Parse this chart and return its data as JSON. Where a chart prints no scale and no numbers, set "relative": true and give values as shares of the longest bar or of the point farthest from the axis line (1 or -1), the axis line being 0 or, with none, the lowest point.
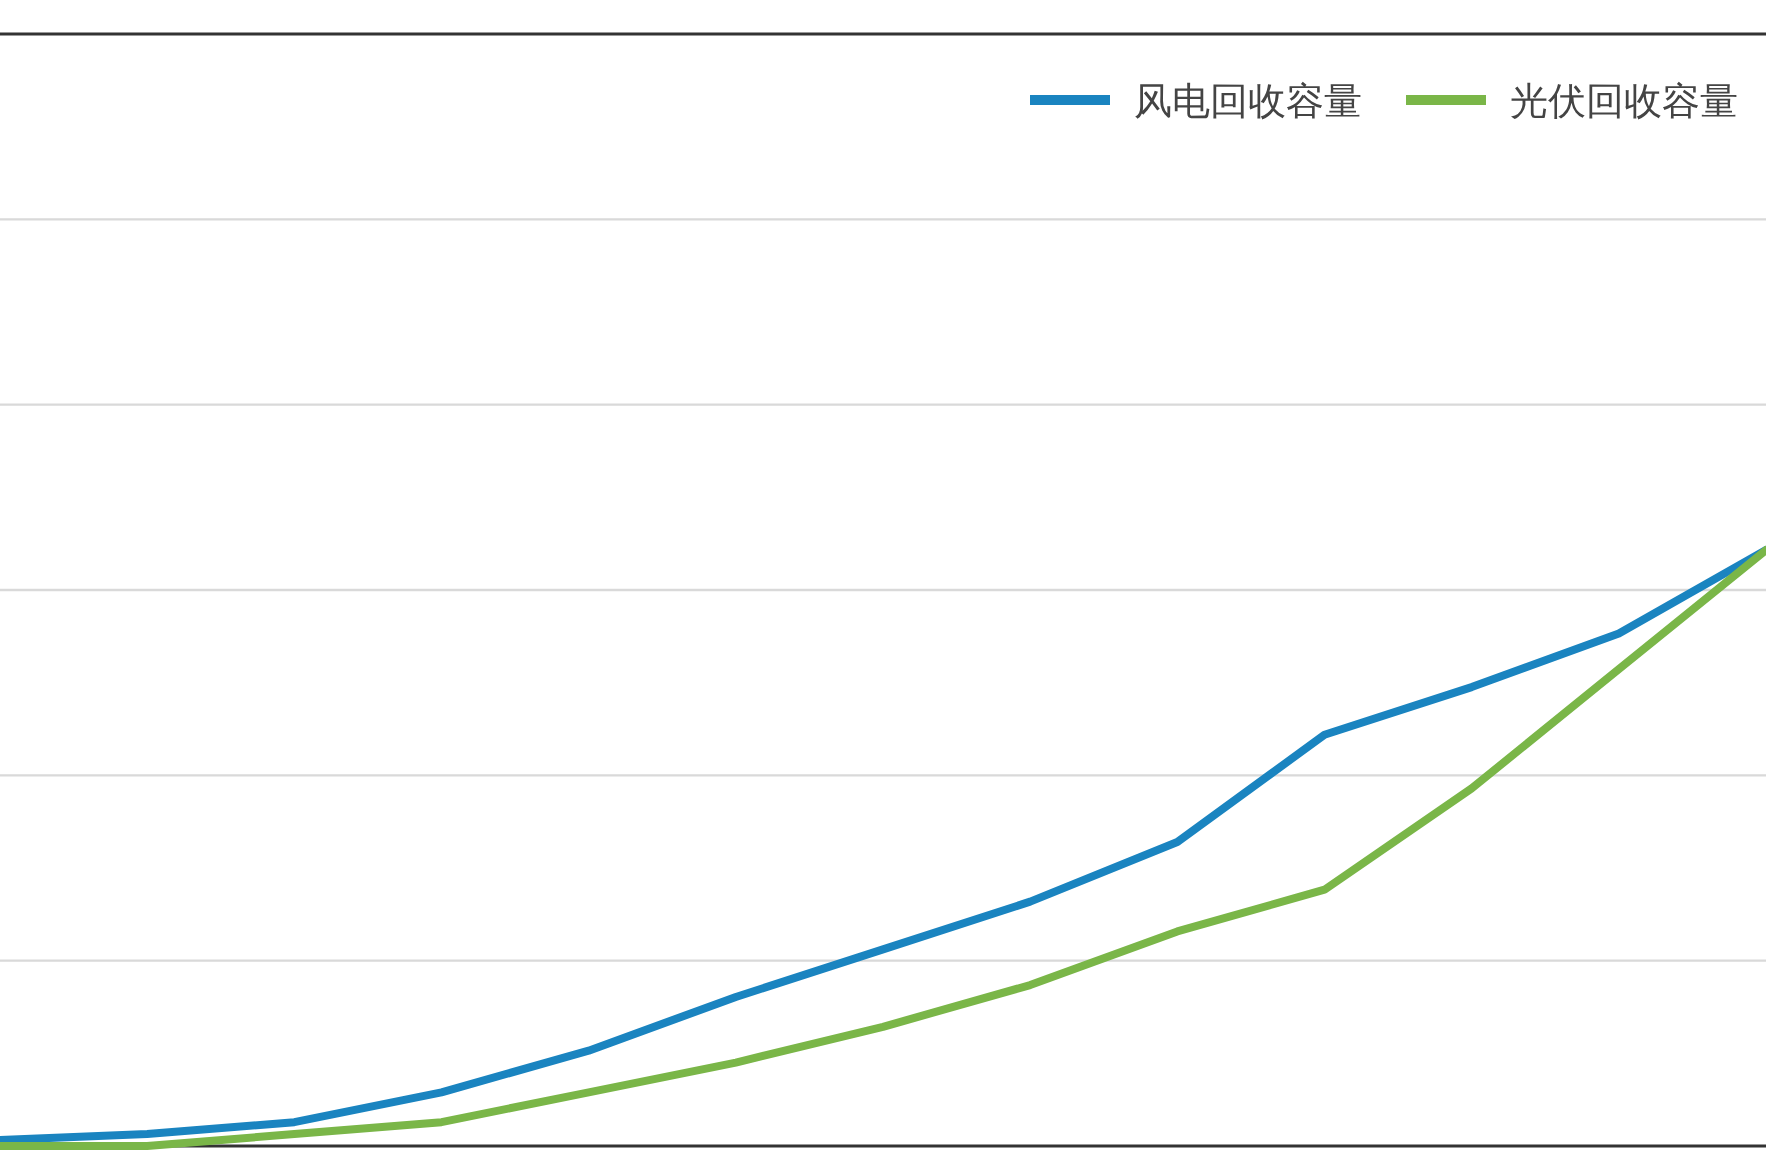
{
  "chart_data": {
    "type": "line",
    "relative": true,
    "grid": "y",
    "legend": "top right",
    "line_style": "solid",
    "marker": "none",
    "categories": [
      null,
      null,
      null,
      null,
      null,
      null,
      null,
      null,
      null,
      null,
      null,
      null,
      null
    ],
    "series": [
      {
        "name": "风电回收容量",
        "color": "#1a84c0",
        "values": [
          0.01,
          0.02,
          0.04,
          0.09,
          0.16,
          0.25,
          0.33,
          0.41,
          0.51,
          0.69,
          0.77,
          0.86,
          1
        ]
      },
      {
        "name": "光伏回收容量",
        "color": "#7ab648",
        "values": [
          0,
          0,
          0.02,
          0.04,
          0.09,
          0.14,
          0.2,
          0.27,
          0.36,
          0.43,
          0.6,
          0.8,
          1
        ]
      }
    ]
  }
}
